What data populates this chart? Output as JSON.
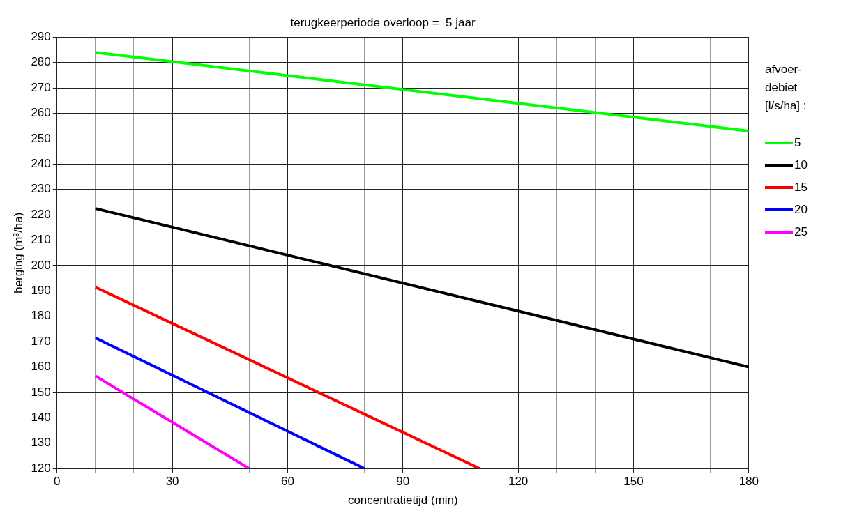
{
  "chart_data": {
    "type": "line",
    "title": "terugkeerperiode overloop =  5 jaar",
    "xlabel": "concentratietijd (min)",
    "ylabel": "berging (m³/ha)",
    "legend_title": "afvoer-\ndebiet\n[l/s/ha] :",
    "x": [
      10,
      180
    ],
    "series": [
      {
        "name": "5",
        "color": "#00ff00",
        "values": [
          284,
          253
        ]
      },
      {
        "name": "10",
        "color": "#000000",
        "values": [
          222.5,
          160
        ]
      },
      {
        "name": "15",
        "color": "#ff0000",
        "x": [
          10,
          110
        ],
        "values": [
          191.5,
          120
        ]
      },
      {
        "name": "20",
        "color": "#0000ff",
        "x": [
          10,
          80
        ],
        "values": [
          171.5,
          120
        ]
      },
      {
        "name": "25",
        "color": "#ff00ff",
        "x": [
          10,
          50
        ],
        "values": [
          156.5,
          120
        ]
      }
    ],
    "xlim": [
      0,
      180
    ],
    "xticks": [
      0,
      {
        "value": 10,
        "label": null
      },
      {
        "value": 20,
        "label": null
      },
      30,
      {
        "value": 40,
        "label": null
      },
      {
        "value": 50,
        "label": null
      },
      60,
      {
        "value": 70,
        "label": null
      },
      {
        "value": 80,
        "label": null
      },
      90,
      {
        "value": 100,
        "label": null
      },
      {
        "value": 110,
        "label": null
      },
      120,
      {
        "value": 130,
        "label": null
      },
      {
        "value": 140,
        "label": null
      },
      150,
      {
        "value": 160,
        "label": null
      },
      {
        "value": 170,
        "label": null
      },
      180
    ],
    "ylim": [
      120,
      290
    ],
    "yticks": [
      120,
      130,
      140,
      150,
      160,
      170,
      180,
      190,
      200,
      210,
      220,
      230,
      240,
      250,
      260,
      270,
      280,
      290
    ],
    "grid": true,
    "legend": "right",
    "marker": "none",
    "line_style": "solid"
  }
}
